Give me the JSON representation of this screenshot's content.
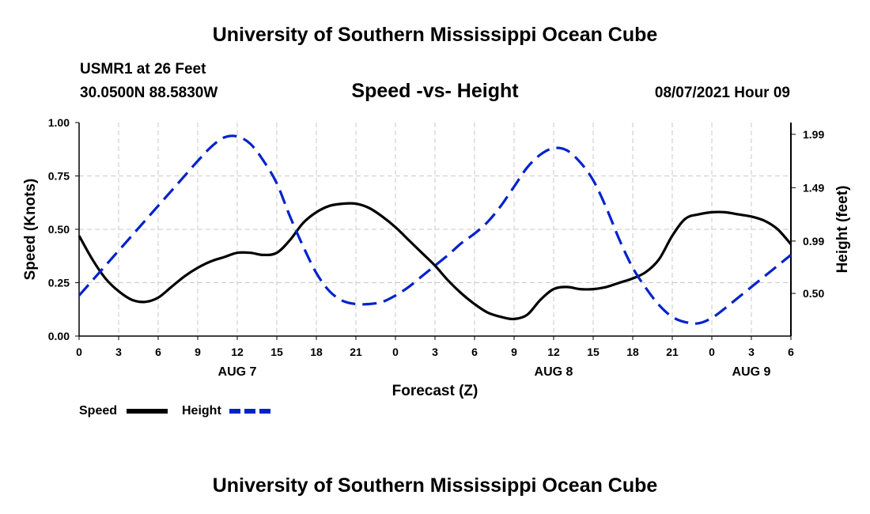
{
  "header": {
    "title": "University of Southern Mississippi Ocean Cube",
    "station": "USMR1 at 26 Feet",
    "coordinates": "30.0500N  88.5830W",
    "subtitle": "Speed -vs- Height",
    "datetime": "08/07/2021 Hour 09"
  },
  "footer": {
    "title": "University of Southern Mississippi Ocean Cube"
  },
  "chart_data": {
    "type": "line",
    "title": "Speed -vs- Height",
    "xlabel": "Forecast (Z)",
    "ylabel": "Speed (Knots)",
    "y2label": "Height (feet)",
    "xlim": [
      0,
      54
    ],
    "ylim": [
      0,
      1
    ],
    "y2lim": [
      0.1,
      2.1
    ],
    "x_ticks": [
      0,
      3,
      6,
      9,
      12,
      15,
      18,
      21,
      24,
      27,
      30,
      33,
      36,
      39,
      42,
      45,
      48,
      51,
      54
    ],
    "x_tick_labels": [
      "0",
      "3",
      "6",
      "9",
      "12",
      "15",
      "18",
      "21",
      "0",
      "3",
      "6",
      "9",
      "12",
      "15",
      "18",
      "21",
      "0",
      "3",
      "6"
    ],
    "date_labels": [
      {
        "x": 12,
        "label": "AUG 7"
      },
      {
        "x": 36,
        "label": "AUG 8"
      },
      {
        "x": 51,
        "label": "AUG 9"
      }
    ],
    "y_ticks": [
      0,
      0.25,
      0.5,
      0.75,
      1.0
    ],
    "y_tick_labels": [
      "0.00",
      "0.25",
      "0.50",
      "0.75",
      "1.00"
    ],
    "y2_ticks": [
      0.5,
      0.99,
      1.49,
      1.99
    ],
    "y2_tick_labels": [
      "0.50",
      "0.99",
      "1.49",
      "1.99"
    ],
    "grid": true,
    "legend_position": "bottom-left",
    "series": [
      {
        "name": "Speed",
        "axis": "left",
        "color": "#000000",
        "dash": "solid",
        "x": [
          0,
          1,
          2,
          3,
          4,
          5,
          6,
          7,
          8,
          9,
          10,
          11,
          12,
          13,
          14,
          15,
          16,
          17,
          18,
          19,
          20,
          21,
          22,
          23,
          24,
          25,
          26,
          27,
          28,
          29,
          30,
          31,
          32,
          33,
          34,
          35,
          36,
          37,
          38,
          39,
          40,
          41,
          42,
          43,
          44,
          45,
          46,
          47,
          48,
          49,
          50,
          51,
          52,
          53,
          54
        ],
        "values": [
          0.47,
          0.36,
          0.27,
          0.21,
          0.17,
          0.16,
          0.18,
          0.23,
          0.28,
          0.32,
          0.35,
          0.37,
          0.39,
          0.39,
          0.38,
          0.39,
          0.45,
          0.53,
          0.58,
          0.61,
          0.62,
          0.62,
          0.6,
          0.56,
          0.51,
          0.45,
          0.39,
          0.33,
          0.26,
          0.2,
          0.15,
          0.11,
          0.09,
          0.08,
          0.1,
          0.17,
          0.22,
          0.23,
          0.22,
          0.22,
          0.23,
          0.25,
          0.27,
          0.3,
          0.36,
          0.47,
          0.55,
          0.57,
          0.58,
          0.58,
          0.57,
          0.56,
          0.54,
          0.5,
          0.43
        ]
      },
      {
        "name": "Height",
        "axis": "right",
        "color": "#0022cc",
        "dash": "dashed",
        "x": [
          0,
          1,
          2,
          3,
          4,
          5,
          6,
          7,
          8,
          9,
          10,
          11,
          12,
          13,
          14,
          15,
          16,
          17,
          18,
          19,
          20,
          21,
          22,
          23,
          24,
          25,
          26,
          27,
          28,
          29,
          30,
          31,
          32,
          33,
          34,
          35,
          36,
          37,
          38,
          39,
          40,
          41,
          42,
          43,
          44,
          45,
          46,
          47,
          48,
          49,
          50,
          51,
          52,
          53,
          54
        ],
        "values": [
          0.48,
          0.62,
          0.76,
          0.9,
          1.04,
          1.18,
          1.32,
          1.46,
          1.6,
          1.74,
          1.87,
          1.96,
          1.97,
          1.9,
          1.74,
          1.53,
          1.22,
          0.94,
          0.69,
          0.52,
          0.43,
          0.4,
          0.4,
          0.42,
          0.48,
          0.56,
          0.66,
          0.76,
          0.86,
          0.97,
          1.06,
          1.17,
          1.32,
          1.5,
          1.68,
          1.8,
          1.86,
          1.84,
          1.73,
          1.56,
          1.3,
          1.0,
          0.74,
          0.55,
          0.39,
          0.28,
          0.23,
          0.22,
          0.27,
          0.36,
          0.46,
          0.56,
          0.66,
          0.76,
          0.86
        ]
      }
    ]
  }
}
